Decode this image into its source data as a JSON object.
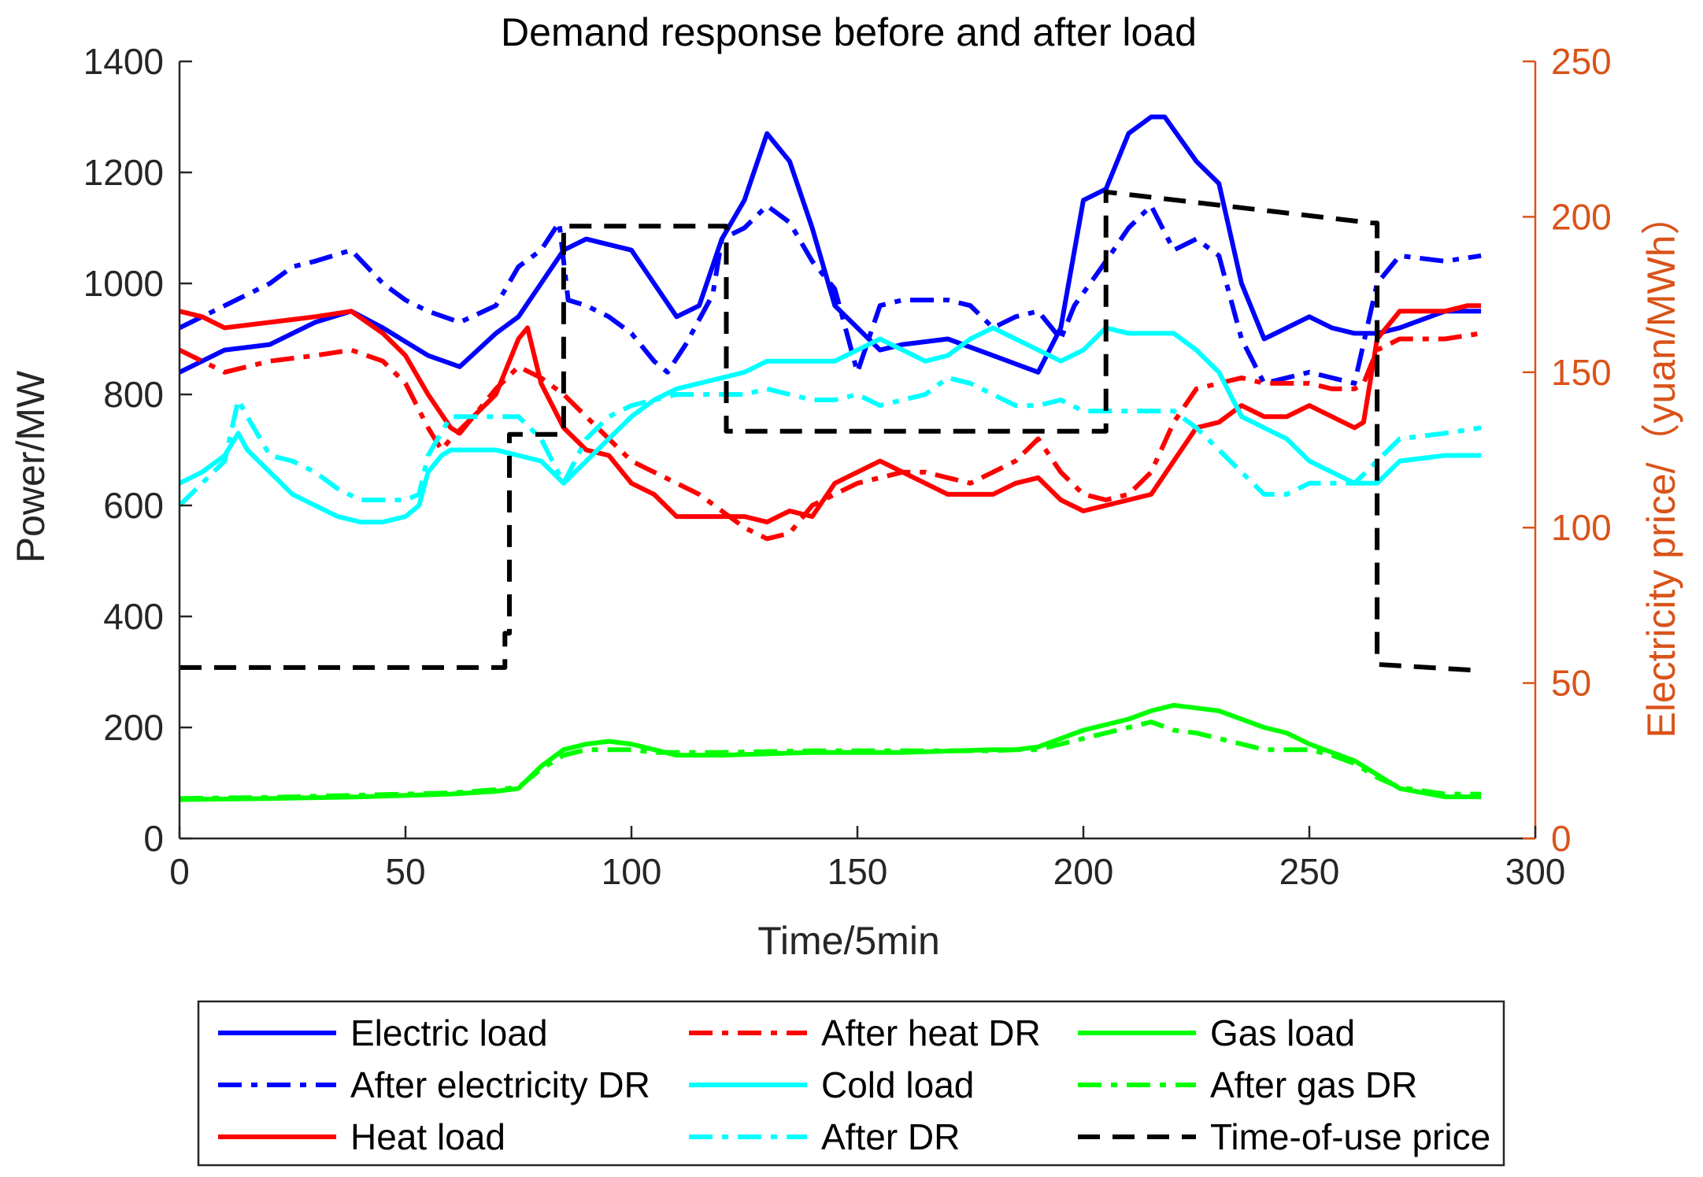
{
  "chart_data": {
    "type": "line",
    "title": "Demand response before and after load",
    "xlabel": "Time/5min",
    "ylabel": "Power/MW",
    "y2label": "Electricity price/（yuan/MWh）",
    "xlim": [
      0,
      300
    ],
    "ylim": [
      0,
      1400
    ],
    "y2lim": [
      0,
      250
    ],
    "xticks": [
      "0",
      "50",
      "100",
      "150",
      "200",
      "250",
      "300"
    ],
    "yticks": [
      "0",
      "200",
      "400",
      "600",
      "800",
      "1000",
      "1200",
      "1400"
    ],
    "y2ticks": [
      "0",
      "50",
      "100",
      "150",
      "200",
      "250"
    ],
    "grid": false,
    "legend_position": "below-plot",
    "colors": {
      "axis": "#262626",
      "right_axis": "#d95319",
      "blue": "#0000ff",
      "red": "#ff0000",
      "cyan": "#00ffff",
      "green": "#00ff00",
      "black": "#000000"
    },
    "series": [
      {
        "name": "Electric load",
        "axis": "left",
        "style": "solid",
        "color": "#0000ff",
        "x": [
          0,
          10,
          20,
          30,
          38,
          45,
          55,
          62,
          70,
          75,
          80,
          85,
          90,
          100,
          105,
          110,
          115,
          120,
          125,
          130,
          135,
          140,
          145,
          150,
          155,
          160,
          170,
          180,
          190,
          195,
          200,
          205,
          210,
          215,
          218,
          225,
          230,
          235,
          240,
          245,
          250,
          255,
          260,
          265,
          270,
          280,
          288
        ],
        "y": [
          840,
          880,
          890,
          930,
          950,
          920,
          870,
          850,
          910,
          940,
          1000,
          1060,
          1080,
          1060,
          1000,
          940,
          960,
          1080,
          1150,
          1270,
          1220,
          1100,
          960,
          920,
          880,
          890,
          900,
          870,
          840,
          920,
          1150,
          1170,
          1270,
          1300,
          1300,
          1220,
          1180,
          1000,
          900,
          920,
          940,
          920,
          910,
          910,
          920,
          950,
          950
        ]
      },
      {
        "name": "After electricity DR",
        "axis": "left",
        "style": "dashdot",
        "color": "#0000ff",
        "x": [
          0,
          10,
          20,
          25,
          30,
          38,
          45,
          50,
          55,
          62,
          70,
          75,
          80,
          84,
          86,
          90,
          95,
          100,
          105,
          108,
          112,
          118,
          120,
          125,
          130,
          135,
          140,
          145,
          150,
          155,
          160,
          170,
          175,
          180,
          185,
          190,
          195,
          198,
          205,
          210,
          215,
          220,
          225,
          230,
          235,
          240,
          245,
          250,
          255,
          260,
          265,
          270,
          280,
          288
        ],
        "y": [
          920,
          960,
          1000,
          1030,
          1040,
          1060,
          1000,
          970,
          950,
          930,
          960,
          1030,
          1060,
          1110,
          970,
          960,
          940,
          910,
          860,
          840,
          890,
          980,
          1080,
          1100,
          1140,
          1110,
          1040,
          990,
          840,
          960,
          970,
          970,
          960,
          920,
          940,
          950,
          900,
          960,
          1040,
          1100,
          1140,
          1060,
          1080,
          1050,
          900,
          820,
          830,
          840,
          830,
          820,
          1000,
          1050,
          1040,
          1050
        ]
      },
      {
        "name": "Heat load",
        "axis": "left",
        "style": "solid",
        "color": "#ff0000",
        "x": [
          0,
          5,
          10,
          20,
          30,
          38,
          45,
          50,
          55,
          60,
          62,
          65,
          70,
          75,
          77,
          80,
          85,
          90,
          95,
          100,
          105,
          110,
          115,
          120,
          125,
          130,
          135,
          140,
          145,
          150,
          155,
          160,
          165,
          170,
          175,
          180,
          185,
          190,
          195,
          200,
          205,
          210,
          215,
          220,
          225,
          230,
          235,
          240,
          245,
          250,
          255,
          260,
          262,
          265,
          270,
          280,
          285,
          288
        ],
        "y": [
          950,
          940,
          920,
          930,
          940,
          950,
          910,
          870,
          800,
          740,
          730,
          760,
          800,
          900,
          920,
          820,
          740,
          700,
          690,
          640,
          620,
          580,
          580,
          580,
          580,
          570,
          590,
          580,
          640,
          660,
          680,
          660,
          640,
          620,
          620,
          620,
          640,
          650,
          610,
          590,
          600,
          610,
          620,
          680,
          740,
          750,
          780,
          760,
          760,
          780,
          760,
          740,
          750,
          900,
          950,
          950,
          960,
          960
        ]
      },
      {
        "name": "After heat DR",
        "axis": "left",
        "style": "dashdot",
        "color": "#ff0000",
        "x": [
          0,
          5,
          10,
          20,
          30,
          38,
          45,
          50,
          55,
          58,
          60,
          65,
          70,
          75,
          80,
          85,
          90,
          95,
          100,
          105,
          110,
          115,
          120,
          125,
          130,
          135,
          140,
          145,
          150,
          155,
          160,
          165,
          170,
          175,
          180,
          185,
          190,
          195,
          200,
          205,
          210,
          215,
          220,
          225,
          230,
          235,
          240,
          245,
          250,
          255,
          260,
          262,
          265,
          270,
          280,
          288
        ],
        "y": [
          880,
          860,
          840,
          860,
          870,
          880,
          860,
          820,
          740,
          700,
          720,
          760,
          810,
          850,
          830,
          800,
          760,
          720,
          680,
          660,
          640,
          620,
          590,
          560,
          540,
          550,
          600,
          620,
          640,
          650,
          660,
          660,
          650,
          640,
          660,
          680,
          720,
          660,
          620,
          610,
          620,
          660,
          750,
          810,
          820,
          830,
          820,
          820,
          820,
          810,
          810,
          820,
          880,
          900,
          900,
          910
        ]
      },
      {
        "name": "Cold load",
        "axis": "left",
        "style": "solid",
        "color": "#00ffff",
        "x": [
          0,
          5,
          10,
          13,
          15,
          20,
          25,
          30,
          35,
          40,
          45,
          50,
          53,
          55,
          58,
          60,
          65,
          70,
          75,
          80,
          85,
          90,
          95,
          100,
          105,
          110,
          115,
          120,
          125,
          130,
          135,
          140,
          145,
          150,
          155,
          160,
          165,
          170,
          175,
          180,
          185,
          190,
          195,
          200,
          205,
          210,
          215,
          220,
          225,
          230,
          235,
          240,
          245,
          250,
          255,
          260,
          265,
          270,
          280,
          288
        ],
        "y": [
          640,
          660,
          690,
          730,
          700,
          660,
          620,
          600,
          580,
          570,
          570,
          580,
          600,
          660,
          690,
          700,
          700,
          700,
          690,
          680,
          640,
          680,
          720,
          760,
          790,
          810,
          820,
          830,
          840,
          860,
          860,
          860,
          860,
          880,
          900,
          880,
          860,
          870,
          900,
          920,
          900,
          880,
          860,
          880,
          920,
          910,
          910,
          910,
          880,
          840,
          760,
          740,
          720,
          680,
          660,
          640,
          640,
          680,
          690,
          690
        ]
      },
      {
        "name": "After DR",
        "axis": "left",
        "style": "dashdot",
        "color": "#00ffff",
        "x": [
          0,
          5,
          10,
          13,
          15,
          20,
          25,
          30,
          35,
          40,
          45,
          50,
          53,
          55,
          60,
          65,
          70,
          75,
          80,
          85,
          90,
          95,
          100,
          105,
          110,
          115,
          120,
          125,
          130,
          135,
          140,
          145,
          150,
          155,
          160,
          165,
          170,
          175,
          180,
          185,
          190,
          195,
          200,
          205,
          210,
          215,
          220,
          225,
          230,
          235,
          240,
          245,
          250,
          255,
          260,
          265,
          270,
          280,
          288
        ],
        "y": [
          600,
          640,
          680,
          790,
          760,
          690,
          680,
          660,
          630,
          610,
          610,
          610,
          620,
          690,
          760,
          760,
          760,
          760,
          720,
          640,
          720,
          760,
          780,
          790,
          800,
          800,
          800,
          800,
          810,
          800,
          790,
          790,
          800,
          780,
          790,
          800,
          830,
          820,
          800,
          780,
          780,
          790,
          770,
          770,
          770,
          770,
          770,
          740,
          700,
          660,
          620,
          620,
          640,
          640,
          640,
          680,
          720,
          730,
          740
        ]
      },
      {
        "name": "Gas load",
        "axis": "left",
        "style": "solid",
        "color": "#00ff00",
        "x": [
          0,
          20,
          40,
          60,
          70,
          75,
          80,
          85,
          90,
          95,
          100,
          105,
          110,
          120,
          140,
          160,
          180,
          185,
          190,
          195,
          200,
          205,
          210,
          215,
          220,
          225,
          230,
          235,
          240,
          245,
          250,
          255,
          260,
          265,
          270,
          280,
          288
        ],
        "y": [
          70,
          72,
          75,
          80,
          85,
          90,
          130,
          160,
          170,
          175,
          170,
          160,
          150,
          150,
          155,
          155,
          160,
          160,
          165,
          180,
          195,
          205,
          215,
          230,
          240,
          235,
          230,
          215,
          200,
          190,
          170,
          155,
          140,
          115,
          90,
          75,
          75
        ]
      },
      {
        "name": "After gas DR",
        "axis": "left",
        "style": "dashdot",
        "color": "#00ff00",
        "x": [
          0,
          20,
          40,
          60,
          70,
          75,
          80,
          85,
          90,
          95,
          100,
          105,
          110,
          120,
          140,
          160,
          180,
          185,
          190,
          195,
          200,
          205,
          210,
          215,
          220,
          225,
          230,
          235,
          240,
          245,
          250,
          255,
          260,
          265,
          270,
          280,
          288
        ],
        "y": [
          72,
          74,
          78,
          82,
          88,
          92,
          125,
          150,
          160,
          160,
          160,
          155,
          155,
          155,
          158,
          158,
          158,
          160,
          160,
          170,
          180,
          190,
          200,
          210,
          195,
          190,
          180,
          170,
          160,
          160,
          160,
          150,
          135,
          110,
          92,
          80,
          80
        ]
      },
      {
        "name": "Time-of-use price",
        "axis": "right",
        "style": "dashed",
        "color": "#000000",
        "x": [
          0,
          72,
          72,
          73,
          73,
          77,
          77,
          84,
          84,
          85,
          85,
          120,
          120,
          121,
          121,
          204,
          204,
          205,
          205,
          264,
          264,
          265,
          265,
          288
        ],
        "y": [
          55,
          55,
          66,
          66,
          130,
          130,
          130,
          130,
          130,
          130,
          197,
          197,
          197,
          197,
          131,
          131,
          131,
          131,
          208,
          198,
          198,
          198,
          56,
          54
        ]
      }
    ]
  }
}
